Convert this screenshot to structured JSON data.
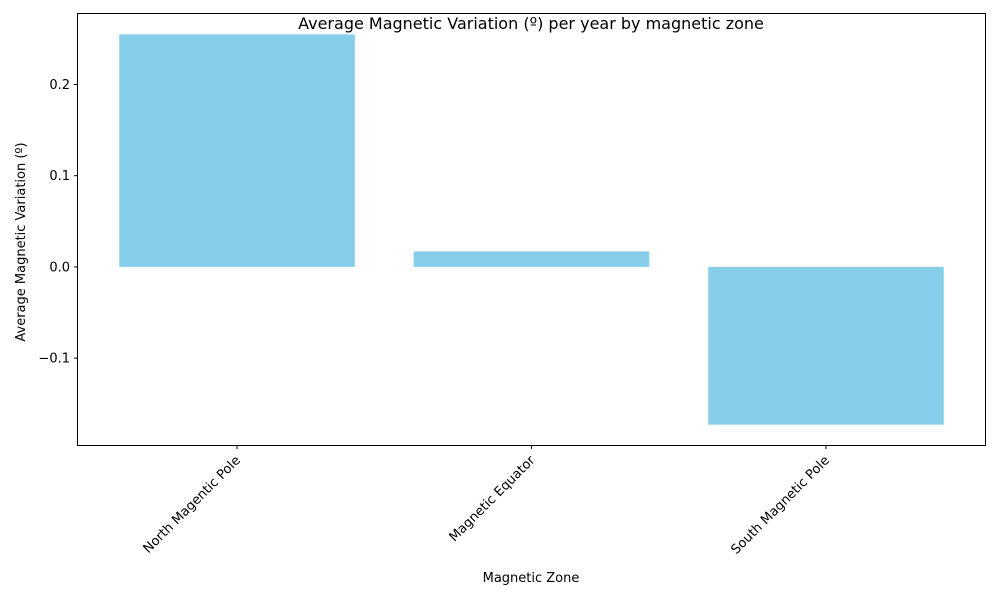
{
  "chart_data": {
    "type": "bar",
    "title": "Average Magnetic Variation (º) per year by magnetic zone",
    "xlabel": "Magnetic Zone",
    "ylabel": "Average Magnetic Variation (º)",
    "categories": [
      "North Magentic Pole",
      "Magnetic Equator",
      "South Magnetic Pole"
    ],
    "values": [
      0.255,
      0.017,
      -0.173
    ],
    "ylim": [
      -0.1953,
      0.2773
    ],
    "yticks": [
      -0.1,
      0.0,
      0.1,
      0.2
    ],
    "ytick_labels": [
      "−0.1",
      "0.0",
      "0.1",
      "0.2"
    ],
    "bar_color": "#87ceeb",
    "grid": false,
    "legend": "none"
  }
}
